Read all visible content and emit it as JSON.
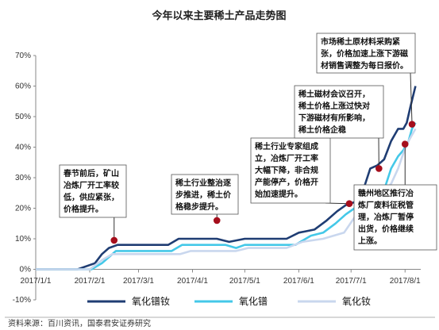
{
  "chart_data": {
    "type": "line",
    "title": "今年以来主要稀土产品走势图",
    "source": "资料来源：百川资讯，国泰君安证券研究",
    "y_ticks": [
      "70%",
      "60%",
      "50%",
      "40%",
      "30%",
      "20%",
      "10%",
      "0%",
      "-10%"
    ],
    "ylim": [
      -0.1,
      0.7
    ],
    "x_ticks": [
      "2017/1/1",
      "2017/2/1",
      "2017/3/1",
      "2017/4/1",
      "2017/5/1",
      "2017/6/1",
      "2017/7/1",
      "2017/8/1"
    ],
    "legend_position": "bottom",
    "grid": false,
    "series": [
      {
        "name": "氧化镨钕",
        "color": "#1f3d73",
        "points": [
          [
            "2017-01-01",
            0.0
          ],
          [
            "2017-01-25",
            0.0
          ],
          [
            "2017-02-04",
            0.02
          ],
          [
            "2017-02-08",
            0.05
          ],
          [
            "2017-02-12",
            0.07
          ],
          [
            "2017-02-17",
            0.08
          ],
          [
            "2017-03-18",
            0.08
          ],
          [
            "2017-03-24",
            0.1
          ],
          [
            "2017-04-15",
            0.1
          ],
          [
            "2017-04-22",
            0.09
          ],
          [
            "2017-05-01",
            0.1
          ],
          [
            "2017-05-25",
            0.1
          ],
          [
            "2017-06-01",
            0.12
          ],
          [
            "2017-06-10",
            0.13
          ],
          [
            "2017-06-17",
            0.16
          ],
          [
            "2017-06-23",
            0.19
          ],
          [
            "2017-06-28",
            0.21
          ],
          [
            "2017-07-03",
            0.22
          ],
          [
            "2017-07-08",
            0.26
          ],
          [
            "2017-07-12",
            0.33
          ],
          [
            "2017-07-16",
            0.34
          ],
          [
            "2017-07-20",
            0.36
          ],
          [
            "2017-07-24",
            0.42
          ],
          [
            "2017-07-28",
            0.46
          ],
          [
            "2017-07-31",
            0.46
          ],
          [
            "2017-08-02",
            0.48
          ],
          [
            "2017-08-04",
            0.53
          ],
          [
            "2017-08-07",
            0.6
          ]
        ]
      },
      {
        "name": "氧化镨",
        "color": "#44c8e8",
        "points": [
          [
            "2017-01-01",
            0.0
          ],
          [
            "2017-02-02",
            0.0
          ],
          [
            "2017-02-08",
            0.02
          ],
          [
            "2017-02-12",
            0.04
          ],
          [
            "2017-02-16",
            0.06
          ],
          [
            "2017-03-20",
            0.06
          ],
          [
            "2017-03-26",
            0.08
          ],
          [
            "2017-04-20",
            0.08
          ],
          [
            "2017-04-26",
            0.07
          ],
          [
            "2017-05-01",
            0.08
          ],
          [
            "2017-05-30",
            0.08
          ],
          [
            "2017-06-08",
            0.11
          ],
          [
            "2017-06-15",
            0.12
          ],
          [
            "2017-06-22",
            0.15
          ],
          [
            "2017-06-28",
            0.18
          ],
          [
            "2017-07-03",
            0.2
          ],
          [
            "2017-07-08",
            0.2
          ],
          [
            "2017-07-12",
            0.23
          ],
          [
            "2017-07-16",
            0.26
          ],
          [
            "2017-07-20",
            0.26
          ],
          [
            "2017-07-24",
            0.33
          ],
          [
            "2017-07-28",
            0.37
          ],
          [
            "2017-07-31",
            0.39
          ],
          [
            "2017-08-03",
            0.42
          ],
          [
            "2017-08-05",
            0.46
          ],
          [
            "2017-08-07",
            0.48
          ]
        ]
      },
      {
        "name": "氧化钕",
        "color": "#c9d7ee",
        "points": [
          [
            "2017-01-01",
            0.0
          ],
          [
            "2017-02-01",
            0.0
          ],
          [
            "2017-02-08",
            0.03
          ],
          [
            "2017-02-14",
            0.05
          ],
          [
            "2017-03-25",
            0.05
          ],
          [
            "2017-03-31",
            0.06
          ],
          [
            "2017-04-26",
            0.06
          ],
          [
            "2017-05-03",
            0.07
          ],
          [
            "2017-05-25",
            0.07
          ],
          [
            "2017-06-03",
            0.09
          ],
          [
            "2017-06-15",
            0.1
          ],
          [
            "2017-06-27",
            0.12
          ],
          [
            "2017-07-03",
            0.17
          ],
          [
            "2017-07-10",
            0.17
          ],
          [
            "2017-07-15",
            0.2
          ],
          [
            "2017-07-20",
            0.26
          ],
          [
            "2017-07-24",
            0.28
          ],
          [
            "2017-07-28",
            0.33
          ],
          [
            "2017-07-31",
            0.38
          ],
          [
            "2017-08-03",
            0.42
          ],
          [
            "2017-08-05",
            0.44
          ],
          [
            "2017-08-07",
            0.46
          ]
        ]
      }
    ],
    "annotations": [
      {
        "id": "ann-spring",
        "lines": [
          "春节前后，矿山",
          "冶炼厂开工率较",
          "低，供应紧张，",
          "价格提升。"
        ],
        "marker": [
          "2017-02-15",
          0.095
        ]
      },
      {
        "id": "ann-rectify",
        "lines": [
          "稀土行业整治逐",
          "步推进，稀土价",
          "格稳步提升。"
        ],
        "marker": [
          "2017-04-15",
          0.16
        ]
      },
      {
        "id": "ann-expert",
        "lines": [
          "稀土行业专家组成",
          "立，冶炼厂开工率",
          "大幅下降，非合规",
          "产能停产，价格开",
          "始加速提升。"
        ],
        "marker": [
          "2017-06-30",
          0.215
        ]
      },
      {
        "id": "ann-conference",
        "lines": [
          "稀土磁材会议召开，",
          "稀土价格上涨过快对",
          "下游磁材有所影响，",
          "稀土价格企稳"
        ],
        "marker": [
          "2017-07-17",
          0.33
        ]
      },
      {
        "id": "ann-market",
        "lines": [
          "市场稀土原材料采购紧",
          "张，价格加速上涨下游磁",
          "材销售调整为每日报价。"
        ],
        "marker": [
          "2017-08-05",
          0.475
        ]
      },
      {
        "id": "ann-ganzhou",
        "lines": [
          "赣州地区推行冶",
          "炼厂废料征税管",
          "理，冶炼厂暂停",
          "出货，价格继续",
          "上涨。"
        ],
        "marker": [
          "2017-08-01",
          0.41
        ]
      }
    ]
  }
}
